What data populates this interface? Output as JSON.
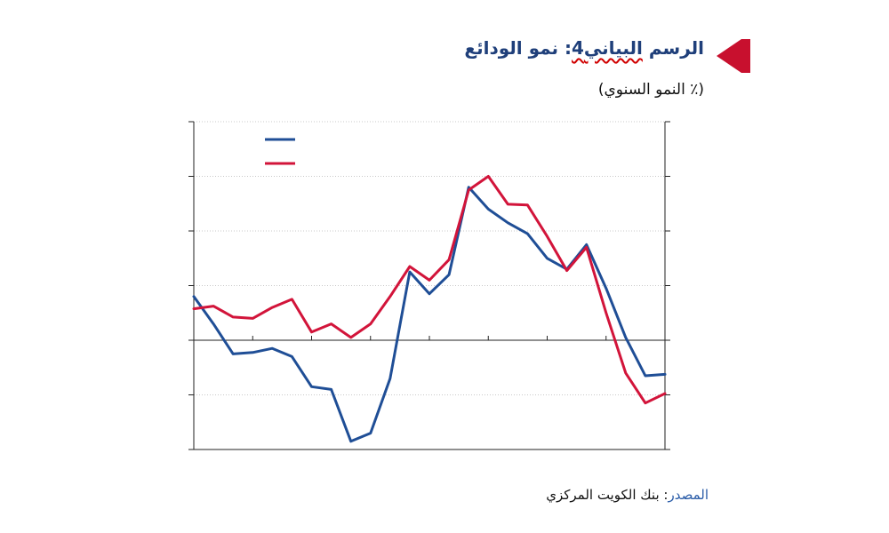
{
  "header": {
    "title_prefix": "الرسم ",
    "title_wavy": "البياني4",
    "title_suffix": ": نمو الودائع",
    "subtitle": "(٪ النمو السنوي)"
  },
  "footer": {
    "source_label": "المصدر",
    "source_text": ": بنك الكويت المركزي"
  },
  "colors": {
    "accent": "#c8102e",
    "title": "#1f3f7a",
    "series_blue": "#1f4e96",
    "series_red": "#d2143a"
  },
  "chart_data": {
    "type": "line",
    "xlim": [
      0,
      24
    ],
    "ylim": [
      -4,
      8
    ],
    "zero": 0,
    "grid": true,
    "series": [
      {
        "color": "#1f4e96",
        "x": [
          0,
          1,
          2,
          3,
          4,
          5,
          6,
          7,
          8,
          9,
          10,
          11,
          12,
          13,
          14,
          15,
          16,
          17,
          18,
          19,
          20,
          21,
          22,
          23,
          24
        ],
        "y": [
          1.6,
          0.6,
          -0.5,
          -0.45,
          -0.3,
          -0.6,
          -1.7,
          -1.8,
          -3.7,
          -3.4,
          -1.4,
          2.5,
          1.7,
          2.4,
          5.6,
          4.8,
          4.3,
          3.9,
          3.0,
          2.6,
          3.5,
          1.9,
          0.1,
          -1.3,
          -1.25
        ]
      },
      {
        "color": "#d2143a",
        "x": [
          0,
          1,
          2,
          3,
          4,
          5,
          6,
          7,
          8,
          9,
          10,
          11,
          12,
          13,
          14,
          15,
          16,
          17,
          18,
          19,
          20,
          21,
          22,
          23,
          24
        ],
        "y": [
          1.15,
          1.25,
          0.85,
          0.8,
          1.2,
          1.5,
          0.3,
          0.6,
          0.1,
          0.6,
          1.6,
          2.7,
          2.2,
          2.95,
          5.5,
          6.0,
          4.98,
          4.95,
          3.8,
          2.55,
          3.4,
          1.0,
          -1.2,
          -2.3,
          -1.95
        ]
      }
    ]
  }
}
